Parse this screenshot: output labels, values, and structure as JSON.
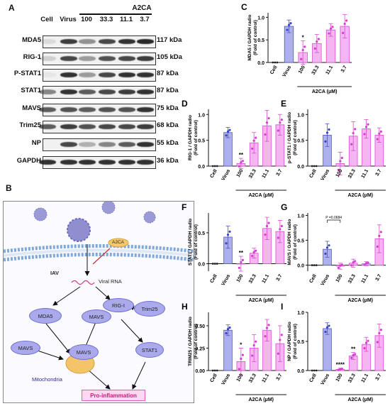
{
  "figure": {
    "panel_a": {
      "letter": "A",
      "drug": "A2CA",
      "lanes": [
        "Cell",
        "Virus",
        "100",
        "33.3",
        "11.1",
        "3.7"
      ],
      "rows": [
        {
          "name": "MDA5",
          "kda": "117 kDa",
          "intensity": [
            0.1,
            0.85,
            0.45,
            0.8,
            0.9,
            0.95
          ]
        },
        {
          "name": "RIG-1",
          "kda": "105 kDa",
          "intensity": [
            0.15,
            0.8,
            0.4,
            0.75,
            0.8,
            0.85
          ]
        },
        {
          "name": "P-STAT1",
          "kda": "87 kDa",
          "intensity": [
            0.05,
            0.9,
            0.4,
            0.8,
            0.9,
            0.9
          ]
        },
        {
          "name": "STAT1",
          "kda": "87 kDa",
          "intensity": [
            0.5,
            0.9,
            0.7,
            0.8,
            0.85,
            0.9
          ]
        },
        {
          "name": "MAVS",
          "kda": "75 kDa",
          "intensity": [
            0.7,
            0.75,
            0.7,
            0.75,
            0.75,
            0.9
          ]
        },
        {
          "name": "Trim25",
          "kda": "68 kDa",
          "intensity": [
            0.7,
            0.85,
            0.75,
            0.8,
            0.8,
            0.85
          ]
        },
        {
          "name": "NP",
          "kda": "55 kDa",
          "intensity": [
            0.0,
            0.8,
            0.3,
            0.5,
            0.7,
            0.9
          ]
        },
        {
          "name": "GAPDH",
          "kda": "36 kDa",
          "intensity": [
            0.9,
            0.9,
            0.9,
            0.9,
            0.9,
            0.9
          ]
        }
      ]
    },
    "panel_b": {
      "letter": "B",
      "labels": {
        "iav": "IAV",
        "a2ca": "A2CA",
        "viral_rna": "Viral RNA",
        "mda5": "MDA5",
        "rig1": "RIG-I",
        "mavs_a": "MAVS",
        "trim25": "Trim25",
        "mavs_b": "MAVS",
        "mavs_mito": "MAVS",
        "stat1": "STAT1",
        "mitochondria": "Mitochondria",
        "pro_inflammation": "Pro-inflammation"
      }
    }
  },
  "colors": {
    "blue_bar": "#aeb0ee",
    "blue_edge": "#4f55c9",
    "pink_bar": "#f5b5f1",
    "pink_edge": "#d64fd0",
    "pink_dot": "#d63ed0",
    "blue_dot": "#3b43c4"
  },
  "chart_data": [
    {
      "panel": "C",
      "type": "bar",
      "categories": [
        "Cell",
        "Virus",
        "100",
        "33.3",
        "11.1",
        "3.7"
      ],
      "values": [
        0,
        0.8,
        0.22,
        0.42,
        0.72,
        0.8
      ],
      "errors": [
        0,
        0.14,
        0.26,
        0.2,
        0.14,
        0.26
      ],
      "ylabel": "MDA5 / GAPDH radio\n(Fold of control)",
      "xlabel": "A2CA (μM)",
      "yticks": [
        "0.0",
        "0.5",
        "1.0"
      ],
      "ylim": [
        0,
        1.1
      ],
      "annotations": [
        {
          "category": "100",
          "text": "*"
        }
      ]
    },
    {
      "panel": "D",
      "type": "bar",
      "categories": [
        "Cell",
        "Virus",
        "100",
        "33.3",
        "11.1",
        "3.7"
      ],
      "values": [
        0,
        0.65,
        0.05,
        0.45,
        0.78,
        0.8
      ],
      "errors": [
        0,
        0.1,
        0.1,
        0.2,
        0.3,
        0.2
      ],
      "ylabel": "RIG-1 / GAPDH radio\n(Fold of control)",
      "xlabel": "A2CA (μM)",
      "yticks": [
        "0.0",
        "0.5",
        "1.0"
      ],
      "ylim": [
        0,
        1.1
      ],
      "annotations": [
        {
          "category": "100",
          "text": "**"
        }
      ]
    },
    {
      "panel": "E",
      "type": "bar",
      "categories": [
        "Cell",
        "Virus",
        "100",
        "33.3",
        "11.1",
        "3.7"
      ],
      "values": [
        0,
        0.6,
        0.05,
        0.58,
        0.72,
        0.6
      ],
      "errors": [
        0,
        0.22,
        0.22,
        0.28,
        0.18,
        0.14
      ],
      "ylabel": "p-STAT1 / GAPDH radio\n(Fold of control)",
      "xlabel": "A2CA (μM)",
      "yticks": [
        "0.0",
        "0.5",
        "1.0"
      ],
      "ylim": [
        0,
        1.1
      ],
      "annotations": []
    },
    {
      "panel": "F",
      "type": "bar",
      "categories": [
        "Cell",
        "Virus",
        "100",
        "33.3",
        "11.1",
        "3.7"
      ],
      "values": [
        0,
        0.43,
        0.0,
        0.17,
        0.57,
        0.52
      ],
      "errors": [
        0,
        0.18,
        0.12,
        0.08,
        0.18,
        0.18
      ],
      "ylabel": "STAT1 / GAPDH radio\n(Fold of control)",
      "xlabel": "A2CA (μM)",
      "yticks": [
        "0.0",
        "0.5"
      ],
      "ylim": [
        -0.12,
        0.82
      ],
      "annotations": [
        {
          "category": "100",
          "text": "**"
        }
      ]
    },
    {
      "panel": "G",
      "type": "bar",
      "categories": [
        "Cell",
        "Virus",
        "100",
        "33.3",
        "11.1",
        "3.7"
      ],
      "values": [
        0,
        0.32,
        -0.02,
        0.04,
        0.03,
        0.53
      ],
      "errors": [
        0,
        0.16,
        0.06,
        0.08,
        0.04,
        0.28
      ],
      "ylabel": "MAVS / GAPDH radio\n(Fold of control)",
      "xlabel": "A2CA (μM)",
      "yticks": [
        "0.0",
        "0.5",
        "1.0"
      ],
      "ylim": [
        -0.12,
        1.05
      ],
      "annotations": [
        {
          "category": "100",
          "text": "P =0.0684",
          "bracket": true
        }
      ]
    },
    {
      "panel": "H",
      "type": "bar",
      "categories": [
        "Cell",
        "Virus",
        "100",
        "33.3",
        "11.1",
        "3.7"
      ],
      "values": [
        0,
        0.45,
        0.1,
        0.25,
        0.45,
        0.3
      ],
      "errors": [
        0,
        0.06,
        0.15,
        0.15,
        0.12,
        0.2
      ],
      "ylabel": "TRIM25 / GAPDH radio\n(Fold of control)",
      "xlabel": "A2CA (μM)",
      "yticks": [
        "0.00",
        "0.25",
        "0.50"
      ],
      "ylim": [
        0,
        0.65
      ],
      "annotations": [
        {
          "category": "100",
          "text": "*"
        }
      ]
    },
    {
      "panel": "I",
      "type": "bar",
      "categories": [
        "Cell",
        "Virus",
        "100",
        "33.3",
        "11.1",
        "3.7"
      ],
      "values": [
        0,
        0.72,
        0.02,
        0.25,
        0.45,
        0.6
      ],
      "errors": [
        0,
        0.1,
        0.02,
        0.06,
        0.12,
        0.2
      ],
      "ylabel": "NP / GAPDH radio\n(Fold of control)",
      "xlabel": "A2CA (μM)",
      "yticks": [
        "0.0",
        "0.5",
        "1.0"
      ],
      "ylim": [
        0,
        1.0
      ],
      "annotations": [
        {
          "category": "100",
          "text": "****"
        },
        {
          "category": "33.3",
          "text": "**"
        }
      ]
    }
  ]
}
